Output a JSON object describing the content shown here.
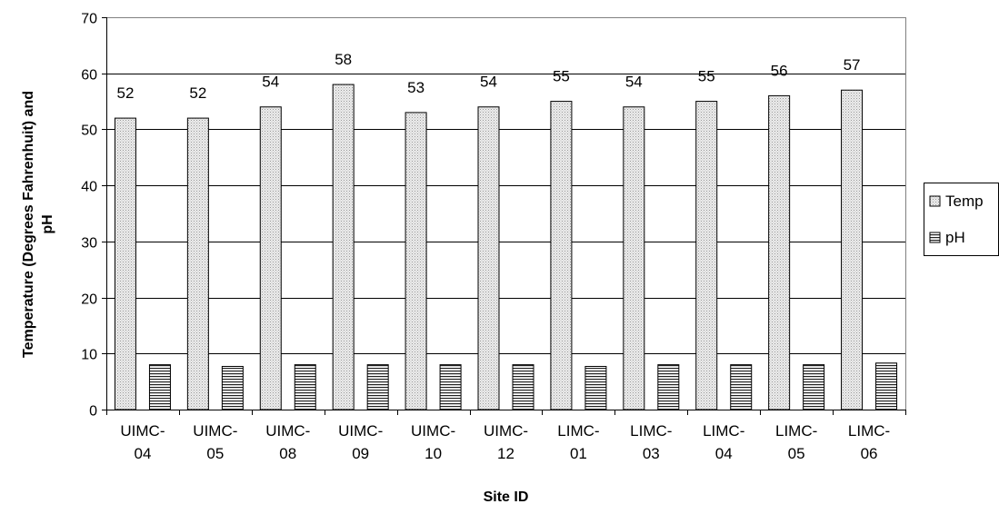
{
  "chart_data": {
    "type": "bar",
    "categories": [
      [
        "UIMC-",
        "04"
      ],
      [
        "UIMC-",
        "05"
      ],
      [
        "UIMC-",
        "08"
      ],
      [
        "UIMC-",
        "09"
      ],
      [
        "UIMC-",
        "10"
      ],
      [
        "UIMC-",
        "12"
      ],
      [
        "LIMC-",
        "01"
      ],
      [
        "LIMC-",
        "03"
      ],
      [
        "LIMC-",
        "04"
      ],
      [
        "LIMC-",
        "05"
      ],
      [
        "LIMC-",
        "06"
      ]
    ],
    "series": [
      {
        "name": "Temp",
        "values": [
          52,
          52,
          54,
          58,
          53,
          54,
          55,
          54,
          55,
          56,
          57
        ],
        "show_labels": true
      },
      {
        "name": "pH",
        "values": [
          8.0,
          7.7,
          8.0,
          8.0,
          8.0,
          8.0,
          7.7,
          8.0,
          8.0,
          8.0,
          8.3
        ],
        "show_labels": false
      }
    ],
    "title": "",
    "xlabel": "Site ID",
    "ylabel": [
      "Temperature (Degrees Fahrenhuit) and",
      "pH"
    ],
    "ylim": [
      0,
      70
    ],
    "yticks": [
      0,
      10,
      20,
      30,
      40,
      50,
      60,
      70
    ],
    "grid": true,
    "legend": "right"
  }
}
